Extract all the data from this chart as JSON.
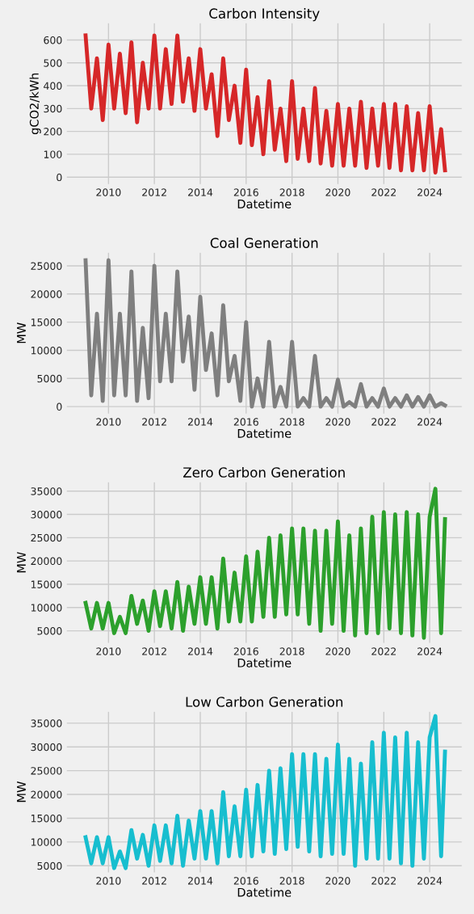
{
  "chart_data": [
    {
      "type": "line",
      "title": "Carbon Intensity",
      "xlabel": "Datetime",
      "ylabel": "gCO2/kWh",
      "grid": true,
      "x": [
        "2009-01",
        "2009-04",
        "2009-07",
        "2009-10",
        "2010-01",
        "2010-04",
        "2010-07",
        "2010-10",
        "2011-01",
        "2011-04",
        "2011-07",
        "2011-10",
        "2012-01",
        "2012-04",
        "2012-07",
        "2012-10",
        "2013-01",
        "2013-04",
        "2013-07",
        "2013-10",
        "2014-01",
        "2014-04",
        "2014-07",
        "2014-10",
        "2015-01",
        "2015-04",
        "2015-07",
        "2015-10",
        "2016-01",
        "2016-04",
        "2016-07",
        "2016-10",
        "2017-01",
        "2017-04",
        "2017-07",
        "2017-10",
        "2018-01",
        "2018-04",
        "2018-07",
        "2018-10",
        "2019-01",
        "2019-04",
        "2019-07",
        "2019-10",
        "2020-01",
        "2020-04",
        "2020-07",
        "2020-10",
        "2021-01",
        "2021-04",
        "2021-07",
        "2021-10",
        "2022-01",
        "2022-04",
        "2022-07",
        "2022-10",
        "2023-01",
        "2023-04",
        "2023-07",
        "2023-10",
        "2024-01",
        "2024-04",
        "2024-07",
        "2024-09"
      ],
      "xlim": [
        "2008-03",
        "2025-06"
      ],
      "xticks": [
        "2010",
        "2012",
        "2014",
        "2016",
        "2018",
        "2020",
        "2022",
        "2024"
      ],
      "ylim": [
        -32,
        675
      ],
      "yticks": [
        0,
        100,
        200,
        300,
        400,
        500,
        600
      ],
      "series": [
        {
          "color": "#d62728",
          "values": [
            620,
            300,
            520,
            250,
            580,
            300,
            540,
            280,
            590,
            240,
            500,
            300,
            620,
            300,
            560,
            320,
            620,
            330,
            520,
            290,
            560,
            300,
            450,
            180,
            520,
            250,
            400,
            150,
            470,
            140,
            350,
            100,
            420,
            120,
            300,
            70,
            420,
            80,
            300,
            70,
            390,
            60,
            290,
            50,
            320,
            50,
            300,
            50,
            330,
            40,
            300,
            50,
            320,
            40,
            320,
            30,
            310,
            30,
            280,
            30,
            310,
            20,
            210,
            30
          ]
        }
      ]
    },
    {
      "type": "line",
      "title": "Coal Generation",
      "xlabel": "Datetime",
      "ylabel": "MW",
      "grid": true,
      "x": [
        "2009-01",
        "2009-04",
        "2009-07",
        "2009-10",
        "2010-01",
        "2010-04",
        "2010-07",
        "2010-10",
        "2011-01",
        "2011-04",
        "2011-07",
        "2011-10",
        "2012-01",
        "2012-04",
        "2012-07",
        "2012-10",
        "2013-01",
        "2013-04",
        "2013-07",
        "2013-10",
        "2014-01",
        "2014-04",
        "2014-07",
        "2014-10",
        "2015-01",
        "2015-04",
        "2015-07",
        "2015-10",
        "2016-01",
        "2016-04",
        "2016-07",
        "2016-10",
        "2017-01",
        "2017-04",
        "2017-07",
        "2017-10",
        "2018-01",
        "2018-04",
        "2018-07",
        "2018-10",
        "2019-01",
        "2019-04",
        "2019-07",
        "2019-10",
        "2020-01",
        "2020-04",
        "2020-07",
        "2020-10",
        "2021-01",
        "2021-04",
        "2021-07",
        "2021-10",
        "2022-01",
        "2022-04",
        "2022-07",
        "2022-10",
        "2023-01",
        "2023-04",
        "2023-07",
        "2023-10",
        "2024-01",
        "2024-04",
        "2024-07",
        "2024-09"
      ],
      "xlim": [
        "2008-03",
        "2025-06"
      ],
      "xticks": [
        "2010",
        "2012",
        "2014",
        "2016",
        "2018",
        "2020",
        "2022",
        "2024"
      ],
      "ylim": [
        -1300,
        27400
      ],
      "yticks": [
        0,
        5000,
        10000,
        15000,
        20000,
        25000
      ],
      "series": [
        {
          "color": "#7f7f7f",
          "values": [
            26000,
            2000,
            16500,
            1000,
            26000,
            2000,
            16500,
            2000,
            24000,
            1000,
            14000,
            1500,
            25000,
            4500,
            16500,
            4500,
            24000,
            8000,
            16000,
            3000,
            19500,
            6500,
            13000,
            2000,
            18000,
            4500,
            9000,
            1000,
            15000,
            0,
            5000,
            0,
            11500,
            0,
            3500,
            0,
            11500,
            0,
            1500,
            0,
            9000,
            0,
            1500,
            0,
            4800,
            0,
            800,
            0,
            4000,
            0,
            1500,
            0,
            3200,
            0,
            1500,
            0,
            2000,
            0,
            1700,
            0,
            2000,
            0,
            600,
            200
          ]
        }
      ]
    },
    {
      "type": "line",
      "title": "Zero Carbon Generation",
      "xlabel": "Datetime",
      "ylabel": "MW",
      "grid": true,
      "x": [
        "2009-01",
        "2009-04",
        "2009-07",
        "2009-10",
        "2010-01",
        "2010-04",
        "2010-07",
        "2010-10",
        "2011-01",
        "2011-04",
        "2011-07",
        "2011-10",
        "2012-01",
        "2012-04",
        "2012-07",
        "2012-10",
        "2013-01",
        "2013-04",
        "2013-07",
        "2013-10",
        "2014-01",
        "2014-04",
        "2014-07",
        "2014-10",
        "2015-01",
        "2015-04",
        "2015-07",
        "2015-10",
        "2016-01",
        "2016-04",
        "2016-07",
        "2016-10",
        "2017-01",
        "2017-04",
        "2017-07",
        "2017-10",
        "2018-01",
        "2018-04",
        "2018-07",
        "2018-10",
        "2019-01",
        "2019-04",
        "2019-07",
        "2019-10",
        "2020-01",
        "2020-04",
        "2020-07",
        "2020-10",
        "2021-01",
        "2021-04",
        "2021-07",
        "2021-10",
        "2022-01",
        "2022-04",
        "2022-07",
        "2022-10",
        "2023-01",
        "2023-04",
        "2023-07",
        "2023-10",
        "2024-01",
        "2024-04",
        "2024-07",
        "2024-09"
      ],
      "xlim": [
        "2008-03",
        "2025-06"
      ],
      "xticks": [
        "2010",
        "2012",
        "2014",
        "2016",
        "2018",
        "2020",
        "2022",
        "2024"
      ],
      "ylim": [
        2300,
        37000
      ],
      "yticks": [
        5000,
        10000,
        15000,
        20000,
        25000,
        30000,
        35000
      ],
      "series": [
        {
          "color": "#2ca02c",
          "values": [
            11000,
            5500,
            11000,
            5500,
            11000,
            4500,
            8000,
            4500,
            12500,
            6500,
            11500,
            5000,
            13500,
            6000,
            13500,
            5500,
            15500,
            5000,
            14500,
            6500,
            16500,
            6500,
            16500,
            5500,
            20500,
            7000,
            17500,
            7000,
            21000,
            7000,
            22000,
            8000,
            25000,
            8000,
            25500,
            8500,
            27000,
            8500,
            27000,
            6500,
            26500,
            5000,
            26500,
            6500,
            28500,
            5000,
            25500,
            4000,
            27000,
            4500,
            29500,
            4500,
            30500,
            5500,
            30000,
            4500,
            30500,
            4000,
            30000,
            3500,
            29500,
            35500,
            4500,
            29000
          ]
        }
      ]
    },
    {
      "type": "line",
      "title": "Low Carbon Generation",
      "xlabel": "Datetime",
      "ylabel": "MW",
      "grid": true,
      "x": [
        "2009-01",
        "2009-04",
        "2009-07",
        "2009-10",
        "2010-01",
        "2010-04",
        "2010-07",
        "2010-10",
        "2011-01",
        "2011-04",
        "2011-07",
        "2011-10",
        "2012-01",
        "2012-04",
        "2012-07",
        "2012-10",
        "2013-01",
        "2013-04",
        "2013-07",
        "2013-10",
        "2014-01",
        "2014-04",
        "2014-07",
        "2014-10",
        "2015-01",
        "2015-04",
        "2015-07",
        "2015-10",
        "2016-01",
        "2016-04",
        "2016-07",
        "2016-10",
        "2017-01",
        "2017-04",
        "2017-07",
        "2017-10",
        "2018-01",
        "2018-04",
        "2018-07",
        "2018-10",
        "2019-01",
        "2019-04",
        "2019-07",
        "2019-10",
        "2020-01",
        "2020-04",
        "2020-07",
        "2020-10",
        "2021-01",
        "2021-04",
        "2021-07",
        "2021-10",
        "2022-01",
        "2022-04",
        "2022-07",
        "2022-10",
        "2023-01",
        "2023-04",
        "2023-07",
        "2023-10",
        "2024-01",
        "2024-04",
        "2024-07",
        "2024-09"
      ],
      "xlim": [
        "2008-03",
        "2025-06"
      ],
      "xticks": [
        "2010",
        "2012",
        "2014",
        "2016",
        "2018",
        "2020",
        "2022",
        "2024"
      ],
      "ylim": [
        3500,
        37500
      ],
      "yticks": [
        5000,
        10000,
        15000,
        20000,
        25000,
        30000,
        35000
      ],
      "series": [
        {
          "color": "#17becf",
          "values": [
            11000,
            5500,
            11000,
            5500,
            11000,
            4500,
            8000,
            4500,
            12500,
            6500,
            11500,
            5000,
            13500,
            6000,
            13500,
            5500,
            15500,
            5000,
            14500,
            6500,
            16500,
            6500,
            16500,
            5500,
            20500,
            7000,
            17500,
            7000,
            21000,
            7000,
            22000,
            8000,
            25000,
            7500,
            25500,
            8500,
            28500,
            9000,
            28500,
            8000,
            28500,
            7000,
            27500,
            7500,
            30500,
            7500,
            27500,
            5000,
            26500,
            6500,
            31000,
            6500,
            33000,
            6500,
            32000,
            5500,
            33000,
            5000,
            31000,
            6500,
            32000,
            36500,
            7000,
            29000
          ]
        }
      ]
    }
  ]
}
